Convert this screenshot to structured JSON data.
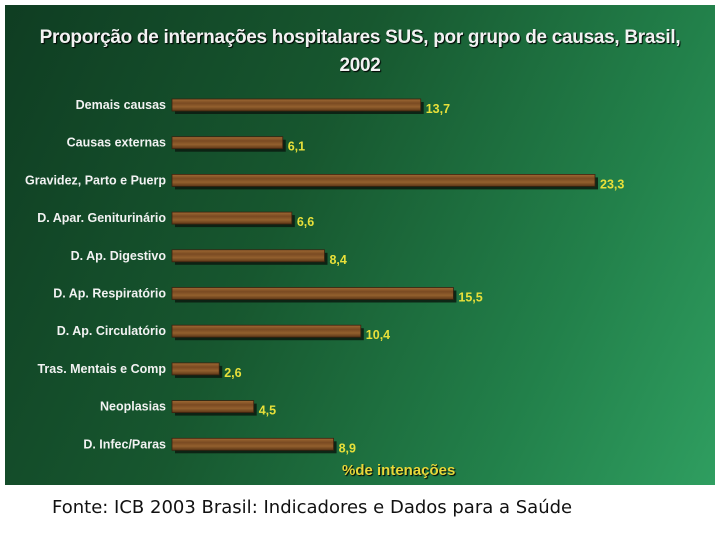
{
  "chart_data": {
    "type": "bar",
    "orientation": "horizontal",
    "title_lines": [
      "Proporção de internações hospitalares SUS, por grupo de causas, Brasil,",
      "2002"
    ],
    "xlabel": "%de intenações",
    "ylabel": "",
    "categories": [
      "Demais causas",
      "Causas externas",
      "Gravidez, Parto e Puerp",
      "D. Apar. Geniturinário",
      "D. Ap. Digestivo",
      "D. Ap. Respiratório",
      "D. Ap. Circulatório",
      "Tras. Mentais e Comp",
      "Neoplasias",
      "D. Infec/Paras"
    ],
    "values": [
      13.7,
      6.1,
      23.3,
      6.6,
      8.4,
      15.5,
      10.4,
      2.6,
      4.5,
      8.9
    ],
    "value_labels": [
      "13,7",
      "6,1",
      "23,3",
      "6,6",
      "8,4",
      "15,5",
      "10,4",
      "2,6",
      "4,5",
      "8,9"
    ],
    "xlim": [
      0,
      23.3
    ],
    "grid": false,
    "legend": "none",
    "colors": {
      "bar": "#8b5a2b",
      "bar_highlight": "#b57a3e",
      "value_label": "#e8e03a",
      "axis_title": "#e8d83a",
      "background": "#1a6a3a"
    }
  },
  "footer": {
    "source": "Fonte: ICB 2003 Brasil: Indicadores e Dados para a Saúde"
  }
}
